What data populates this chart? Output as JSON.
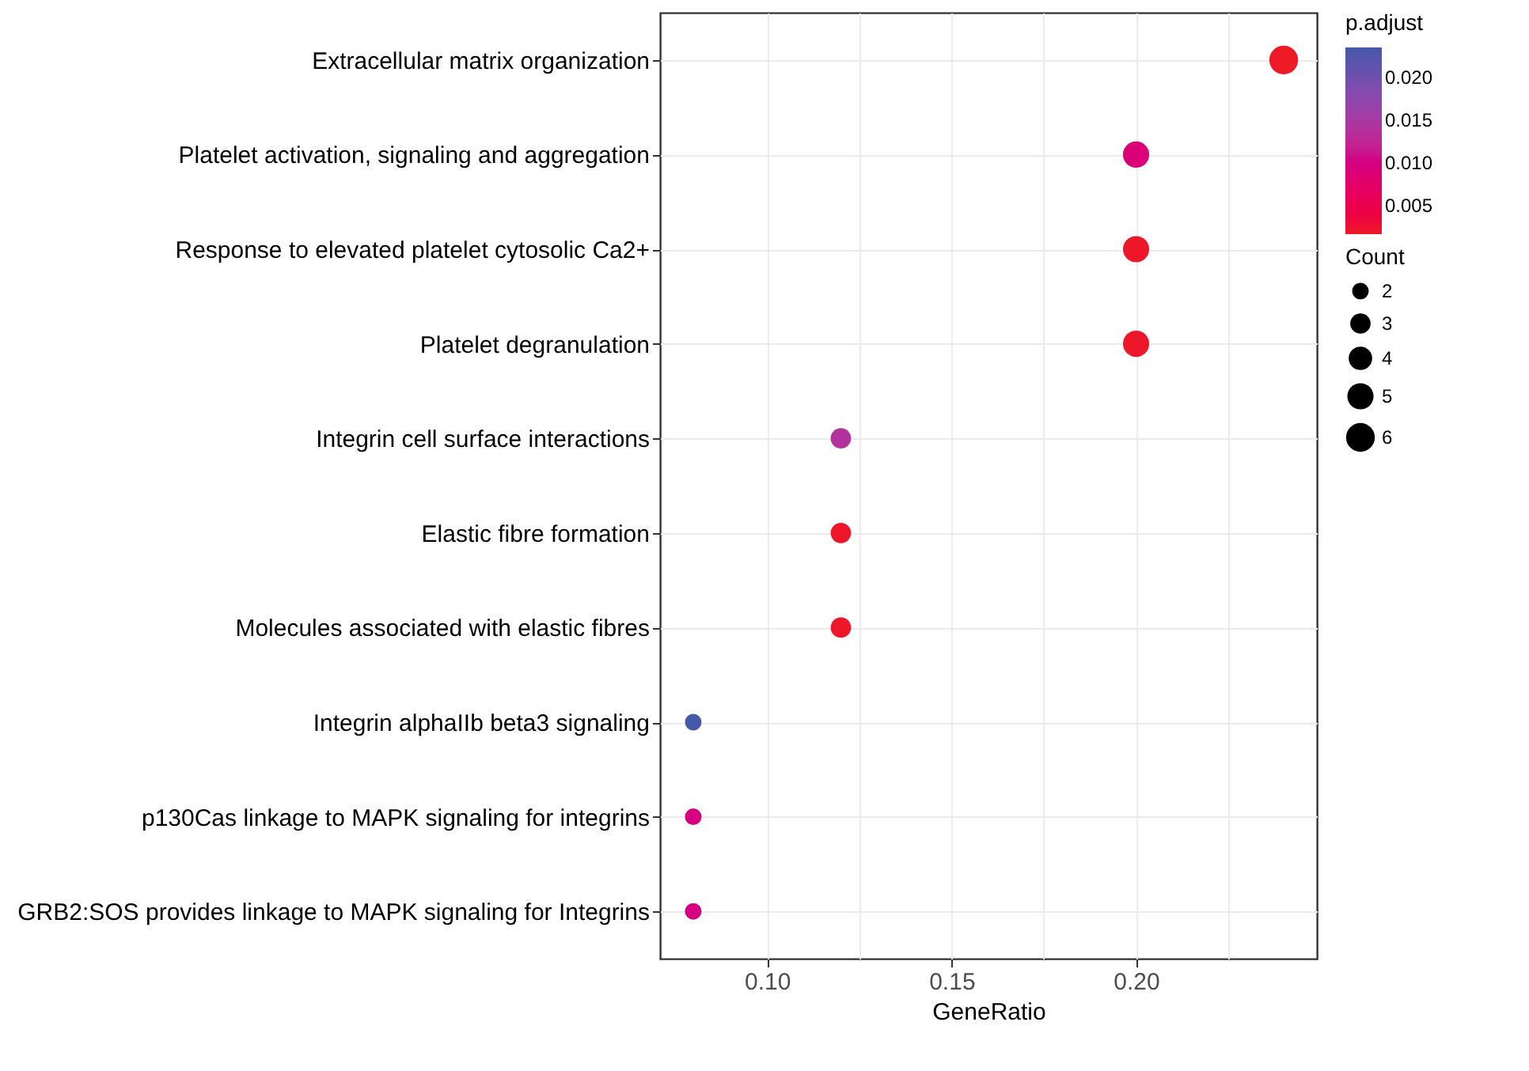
{
  "chart_data": {
    "type": "scatter",
    "orientation": "horizontal",
    "xlabel": "GeneRatio",
    "legend_title": "Count",
    "clabel": "p.adjust",
    "categories": [
      "Extracellular matrix organization",
      "Platelet activation, signaling and aggregation",
      "Response to elevated platelet cytosolic Ca2+",
      "Platelet degranulation ",
      "Integrin cell surface interactions",
      "Elastic fibre formation",
      "Molecules associated with elastic fibres",
      "Integrin alphaIIb beta3 signaling",
      "p130Cas linkage to MAPK signaling for integrins",
      "GRB2:SOS provides linkage to MAPK signaling for Integrins"
    ],
    "values": [
      0.24,
      0.2,
      0.2,
      0.2,
      0.12,
      0.12,
      0.12,
      0.08,
      0.08,
      0.08
    ],
    "sizes": [
      6,
      5,
      5,
      5,
      3,
      3,
      3,
      2,
      2,
      2
    ],
    "size_legend": [
      2,
      3,
      4,
      5,
      6
    ],
    "cvalues": [
      0.0018,
      0.009,
      0.002,
      0.002,
      0.014,
      0.002,
      0.002,
      0.0235,
      0.01,
      0.01
    ],
    "clim": [
      0.0017,
      0.0235
    ],
    "cticks": [
      0.005,
      {
        "value": 0.01,
        "label": "0.010"
      },
      0.015,
      {
        "value": 0.02,
        "label": "0.020"
      }
    ],
    "xlim": [
      0.071,
      0.249
    ],
    "xticks": [
      {
        "value": 0.1,
        "label": "0.10"
      },
      {
        "value": 0.125,
        "label": null
      },
      0.15,
      {
        "value": 0.175,
        "label": null
      },
      {
        "value": 0.2,
        "label": "0.20"
      },
      {
        "value": 0.225,
        "label": null
      }
    ],
    "grid": true,
    "marker": "circle"
  }
}
